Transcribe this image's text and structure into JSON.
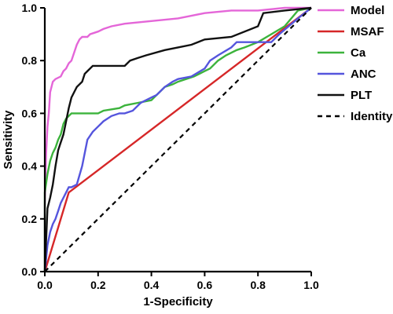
{
  "chart_data": {
    "type": "line",
    "title": "",
    "xlabel": "1-Specificity",
    "ylabel": "Sensitivity",
    "xlim": [
      0,
      1
    ],
    "ylim": [
      0,
      1
    ],
    "xticks": [
      "0.0",
      "0.2",
      "0.4",
      "0.6",
      "0.8",
      "1.0"
    ],
    "yticks": [
      "0.0",
      "0.2",
      "0.4",
      "0.6",
      "0.8",
      "1.0"
    ],
    "grid": false,
    "legend_position": "right",
    "series": [
      {
        "name": "Model",
        "color": "#e466d8",
        "dash": "",
        "points": [
          [
            0,
            0
          ],
          [
            0,
            0.25
          ],
          [
            0.005,
            0.45
          ],
          [
            0.01,
            0.55
          ],
          [
            0.015,
            0.6
          ],
          [
            0.02,
            0.68
          ],
          [
            0.03,
            0.72
          ],
          [
            0.04,
            0.73
          ],
          [
            0.06,
            0.74
          ],
          [
            0.07,
            0.76
          ],
          [
            0.08,
            0.77
          ],
          [
            0.09,
            0.79
          ],
          [
            0.1,
            0.8
          ],
          [
            0.11,
            0.83
          ],
          [
            0.12,
            0.86
          ],
          [
            0.13,
            0.88
          ],
          [
            0.14,
            0.89
          ],
          [
            0.16,
            0.89
          ],
          [
            0.17,
            0.9
          ],
          [
            0.2,
            0.91
          ],
          [
            0.22,
            0.92
          ],
          [
            0.25,
            0.93
          ],
          [
            0.3,
            0.94
          ],
          [
            0.4,
            0.95
          ],
          [
            0.5,
            0.96
          ],
          [
            0.55,
            0.97
          ],
          [
            0.6,
            0.98
          ],
          [
            0.7,
            0.99
          ],
          [
            0.8,
            0.99
          ],
          [
            0.9,
            1.0
          ],
          [
            1.0,
            1.0
          ]
        ]
      },
      {
        "name": "MSAF",
        "color": "#d62728",
        "dash": "",
        "points": [
          [
            0,
            0
          ],
          [
            0.09,
            0.3
          ],
          [
            1.0,
            1.0
          ]
        ]
      },
      {
        "name": "Ca",
        "color": "#3cb33c",
        "dash": "",
        "points": [
          [
            0,
            0
          ],
          [
            0,
            0.3
          ],
          [
            0.01,
            0.37
          ],
          [
            0.02,
            0.42
          ],
          [
            0.03,
            0.45
          ],
          [
            0.04,
            0.47
          ],
          [
            0.05,
            0.5
          ],
          [
            0.06,
            0.52
          ],
          [
            0.07,
            0.56
          ],
          [
            0.08,
            0.58
          ],
          [
            0.09,
            0.59
          ],
          [
            0.1,
            0.6
          ],
          [
            0.2,
            0.6
          ],
          [
            0.22,
            0.61
          ],
          [
            0.28,
            0.62
          ],
          [
            0.3,
            0.63
          ],
          [
            0.35,
            0.64
          ],
          [
            0.4,
            0.65
          ],
          [
            0.45,
            0.7
          ],
          [
            0.48,
            0.71
          ],
          [
            0.5,
            0.72
          ],
          [
            0.56,
            0.74
          ],
          [
            0.58,
            0.75
          ],
          [
            0.6,
            0.76
          ],
          [
            0.62,
            0.77
          ],
          [
            0.65,
            0.8
          ],
          [
            0.68,
            0.82
          ],
          [
            0.72,
            0.84
          ],
          [
            0.75,
            0.85
          ],
          [
            0.8,
            0.87
          ],
          [
            0.85,
            0.9
          ],
          [
            0.9,
            0.93
          ],
          [
            0.95,
            0.99
          ],
          [
            1.0,
            1.0
          ]
        ]
      },
      {
        "name": "ANC",
        "color": "#5555dd",
        "dash": "",
        "points": [
          [
            0,
            0
          ],
          [
            0.01,
            0.1
          ],
          [
            0.02,
            0.15
          ],
          [
            0.03,
            0.18
          ],
          [
            0.04,
            0.2
          ],
          [
            0.05,
            0.23
          ],
          [
            0.06,
            0.26
          ],
          [
            0.07,
            0.28
          ],
          [
            0.08,
            0.3
          ],
          [
            0.09,
            0.32
          ],
          [
            0.1,
            0.32
          ],
          [
            0.12,
            0.33
          ],
          [
            0.14,
            0.4
          ],
          [
            0.16,
            0.5
          ],
          [
            0.18,
            0.53
          ],
          [
            0.2,
            0.55
          ],
          [
            0.22,
            0.57
          ],
          [
            0.25,
            0.59
          ],
          [
            0.28,
            0.6
          ],
          [
            0.3,
            0.6
          ],
          [
            0.33,
            0.61
          ],
          [
            0.36,
            0.64
          ],
          [
            0.4,
            0.66
          ],
          [
            0.42,
            0.67
          ],
          [
            0.45,
            0.7
          ],
          [
            0.48,
            0.72
          ],
          [
            0.5,
            0.73
          ],
          [
            0.55,
            0.74
          ],
          [
            0.6,
            0.77
          ],
          [
            0.62,
            0.8
          ],
          [
            0.65,
            0.82
          ],
          [
            0.7,
            0.85
          ],
          [
            0.72,
            0.87
          ],
          [
            0.85,
            0.87
          ],
          [
            0.88,
            0.9
          ],
          [
            0.95,
            0.96
          ],
          [
            1.0,
            1.0
          ]
        ]
      },
      {
        "name": "PLT",
        "color": "#111111",
        "dash": "",
        "points": [
          [
            0,
            0
          ],
          [
            0.01,
            0.24
          ],
          [
            0.02,
            0.28
          ],
          [
            0.03,
            0.33
          ],
          [
            0.04,
            0.4
          ],
          [
            0.05,
            0.46
          ],
          [
            0.06,
            0.49
          ],
          [
            0.07,
            0.52
          ],
          [
            0.08,
            0.57
          ],
          [
            0.09,
            0.62
          ],
          [
            0.1,
            0.66
          ],
          [
            0.11,
            0.68
          ],
          [
            0.12,
            0.7
          ],
          [
            0.14,
            0.72
          ],
          [
            0.15,
            0.75
          ],
          [
            0.16,
            0.76
          ],
          [
            0.18,
            0.78
          ],
          [
            0.3,
            0.78
          ],
          [
            0.32,
            0.8
          ],
          [
            0.35,
            0.81
          ],
          [
            0.38,
            0.82
          ],
          [
            0.45,
            0.84
          ],
          [
            0.5,
            0.85
          ],
          [
            0.55,
            0.86
          ],
          [
            0.6,
            0.88
          ],
          [
            0.7,
            0.89
          ],
          [
            0.8,
            0.93
          ],
          [
            0.82,
            0.98
          ],
          [
            0.9,
            0.99
          ],
          [
            1.0,
            1.0
          ]
        ]
      },
      {
        "name": "Identity",
        "color": "#000000",
        "dash": "6,5",
        "points": [
          [
            0,
            0
          ],
          [
            1,
            1
          ]
        ]
      }
    ]
  }
}
